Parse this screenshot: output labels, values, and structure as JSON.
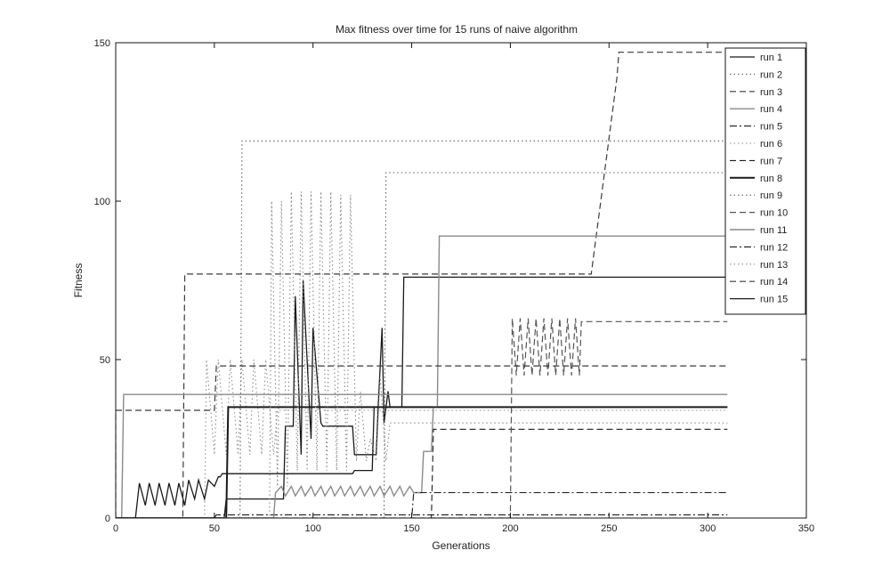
{
  "chart_data": {
    "type": "line",
    "title": "Max fitness over time for 15 runs of naive algorithm",
    "xlabel": "Generations",
    "ylabel": "Fitness",
    "xlim": [
      0,
      350
    ],
    "ylim": [
      0,
      150
    ],
    "xticks": [
      0,
      50,
      100,
      150,
      200,
      250,
      300,
      350
    ],
    "yticks": [
      0,
      50,
      100,
      150
    ],
    "grid": false,
    "legend_position": "top-right",
    "series": [
      {
        "name": "run 1",
        "color": "#1a1a1a",
        "dash": "solid",
        "width": 1.3,
        "x": [
          0,
          55,
          56,
          85,
          86,
          90,
          91,
          94,
          95,
          99,
          100,
          104,
          105,
          120,
          121,
          132,
          133,
          135,
          136,
          138,
          139,
          145,
          146,
          310
        ],
        "y": [
          0,
          0,
          6,
          6,
          29,
          29,
          70,
          20,
          75,
          25,
          60,
          30,
          29,
          29,
          20,
          20,
          35,
          60,
          30,
          40,
          35,
          35,
          76,
          76
        ]
      },
      {
        "name": "run 2",
        "color": "#707070",
        "dash": "dot",
        "width": 1.2,
        "x": [
          0,
          63,
          64,
          310
        ],
        "y": [
          0,
          0,
          119,
          119
        ]
      },
      {
        "name": "run 3",
        "color": "#3a3a3a",
        "dash": "dash",
        "width": 1.2,
        "x": [
          0,
          34,
          35,
          240,
          241,
          254,
          255,
          310
        ],
        "y": [
          0,
          0,
          77,
          77,
          77,
          139,
          147,
          147
        ]
      },
      {
        "name": "run 4",
        "color": "#8a8a8a",
        "dash": "solid",
        "width": 1.4,
        "x": [
          0,
          3,
          4,
          310
        ],
        "y": [
          0,
          0,
          39,
          39
        ]
      },
      {
        "name": "run 5",
        "color": "#1a1a1a",
        "dash": "dashdot",
        "width": 1.1,
        "x": [
          0,
          50,
          51,
          310
        ],
        "y": [
          0,
          0,
          1,
          1
        ]
      },
      {
        "name": "run 6",
        "color": "#909090",
        "dash": "dot",
        "width": 1.1,
        "x": [
          0,
          45,
          46,
          50,
          52,
          56,
          58,
          62,
          64,
          68,
          70,
          74,
          76,
          80,
          82,
          310
        ],
        "y": [
          0,
          0,
          50,
          20,
          50,
          20,
          50,
          20,
          50,
          20,
          50,
          20,
          50,
          20,
          34,
          34
        ]
      },
      {
        "name": "run 7",
        "color": "#1a1a1a",
        "dash": "dash",
        "width": 1.1,
        "x": [
          0,
          160,
          161,
          310
        ],
        "y": [
          0,
          0,
          28,
          28
        ]
      },
      {
        "name": "run 8",
        "color": "#1a1a1a",
        "dash": "solid",
        "width": 2.0,
        "x": [
          0,
          56,
          57,
          310
        ],
        "y": [
          0,
          0,
          35,
          35
        ]
      },
      {
        "name": "run 9",
        "color": "#606060",
        "dash": "dot",
        "width": 1.1,
        "x": [
          0,
          136,
          137,
          310
        ],
        "y": [
          0,
          0,
          109,
          109
        ]
      },
      {
        "name": "run 10",
        "color": "#555555",
        "dash": "dash",
        "width": 1.2,
        "x": [
          0,
          200,
          201,
          203,
          205,
          207,
          209,
          211,
          213,
          215,
          217,
          219,
          221,
          223,
          225,
          227,
          229,
          231,
          233,
          235,
          236,
          310
        ],
        "y": [
          0,
          0,
          63,
          45,
          63,
          45,
          63,
          45,
          63,
          45,
          63,
          45,
          63,
          45,
          63,
          45,
          63,
          45,
          63,
          45,
          62,
          62
        ]
      },
      {
        "name": "run 11",
        "color": "#8a8a8a",
        "dash": "solid",
        "width": 1.4,
        "x": [
          0,
          80,
          81,
          84,
          86,
          89,
          91,
          94,
          96,
          99,
          101,
          104,
          106,
          109,
          111,
          114,
          116,
          119,
          121,
          124,
          126,
          129,
          131,
          134,
          136,
          139,
          141,
          144,
          146,
          149,
          151,
          155,
          156,
          160,
          161,
          163,
          164,
          310
        ],
        "y": [
          0,
          0,
          8,
          10,
          7,
          10,
          7,
          10,
          7,
          10,
          7,
          10,
          7,
          10,
          7,
          10,
          7,
          10,
          7,
          10,
          7,
          10,
          7,
          10,
          7,
          10,
          7,
          10,
          7,
          10,
          8,
          8,
          21,
          21,
          35,
          35,
          89,
          89
        ]
      },
      {
        "name": "run 12",
        "color": "#1a1a1a",
        "dash": "dashdot",
        "width": 1.1,
        "x": [
          0,
          150,
          151,
          310
        ],
        "y": [
          0,
          0,
          8,
          8
        ]
      },
      {
        "name": "run 13",
        "color": "#8a8a8a",
        "dash": "dot",
        "width": 1.1,
        "x": [
          0,
          78,
          79,
          82,
          84,
          87,
          89,
          92,
          94,
          97,
          99,
          102,
          104,
          107,
          109,
          112,
          114,
          117,
          119,
          122,
          124,
          127,
          129,
          132,
          134,
          137,
          139,
          310
        ],
        "y": [
          0,
          0,
          100,
          10,
          100,
          10,
          103,
          15,
          103,
          15,
          103,
          15,
          103,
          15,
          103,
          15,
          102,
          15,
          102,
          18,
          40,
          18,
          25,
          18,
          45,
          18,
          30,
          30
        ]
      },
      {
        "name": "run 14",
        "color": "#3a3a3a",
        "dash": "dash",
        "width": 1.2,
        "x": [
          0,
          0,
          5,
          6,
          13,
          14,
          50,
          51,
          145,
          146,
          175,
          176,
          310
        ],
        "y": [
          0,
          34,
          34,
          34,
          34,
          34,
          34,
          48,
          48,
          48,
          48,
          48,
          48
        ]
      },
      {
        "name": "run 15",
        "color": "#1a1a1a",
        "dash": "solid",
        "width": 1.3,
        "x": [
          0,
          10,
          12,
          15,
          17,
          20,
          22,
          25,
          27,
          30,
          32,
          35,
          37,
          40,
          42,
          45,
          47,
          50,
          52,
          53,
          54,
          120,
          121,
          130,
          131,
          310
        ],
        "y": [
          0,
          0,
          11,
          4,
          11,
          4,
          11,
          4,
          11,
          4,
          11,
          4,
          12,
          6,
          12,
          6,
          12,
          10,
          13,
          13,
          14,
          14,
          15,
          15,
          35,
          35
        ]
      }
    ]
  }
}
